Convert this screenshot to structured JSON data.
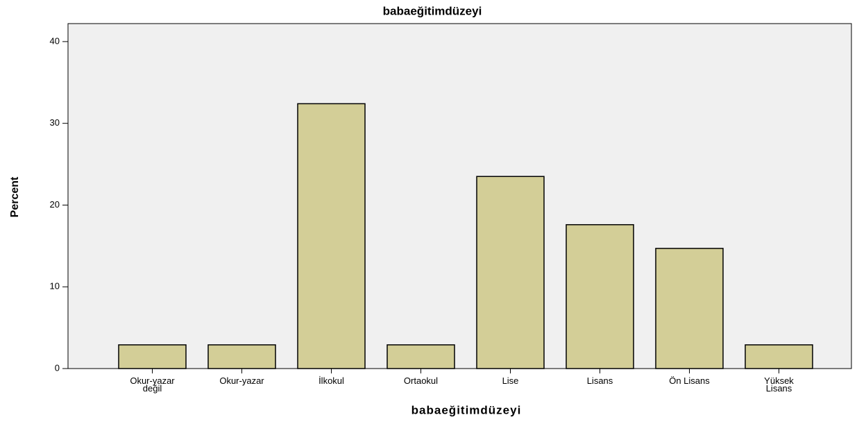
{
  "chart_data": {
    "type": "bar",
    "title": "babaeğitimdüzeyi",
    "x_label": "babaeğitimdüzeyi",
    "y_label": "Percent",
    "categories": [
      "Okur-yazar\ndeğil",
      "Okur-yazar",
      "İlkokul",
      "Ortaokul",
      "Lise",
      "Lisans",
      "Ön Lisans",
      "Yüksek\nLisans"
    ],
    "values": [
      2.9,
      2.9,
      32.4,
      2.9,
      23.5,
      17.6,
      14.7,
      2.9
    ],
    "color": "#d3ce97",
    "ylim": [
      0,
      42.2
    ],
    "yticks": [
      0,
      10,
      20,
      30,
      40
    ],
    "grid": false
  }
}
